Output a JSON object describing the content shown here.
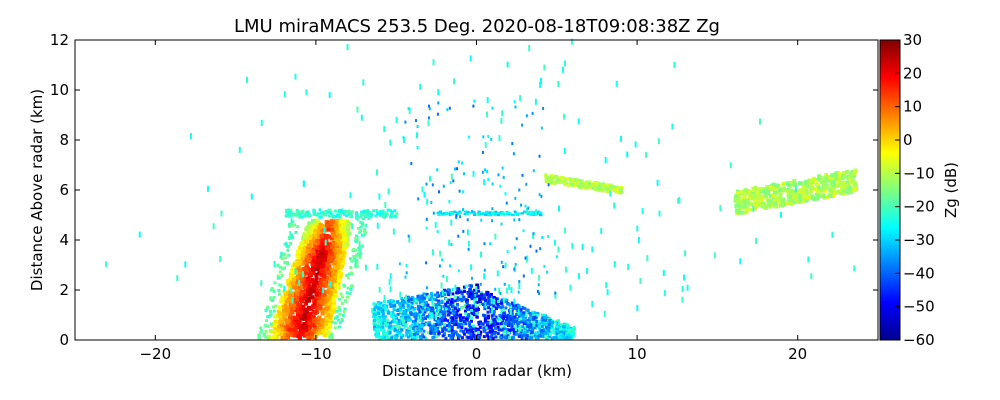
{
  "chart_data": {
    "type": "heatmap",
    "title": "LMU miraMACS 253.5 Deg. 2020-08-18T09:08:38Z  Zg",
    "xlabel": "Distance from radar (km)",
    "ylabel": "Distance Above radar  (km)",
    "xlim": [
      -25,
      25
    ],
    "ylim": [
      0,
      12
    ],
    "x_ticks": [
      -20,
      -10,
      0,
      10,
      20
    ],
    "x_tick_labels": [
      "−20",
      "−10",
      "0",
      "10",
      "20"
    ],
    "y_ticks": [
      0,
      2,
      4,
      6,
      8,
      10,
      12
    ],
    "y_tick_labels": [
      "0",
      "2",
      "4",
      "6",
      "8",
      "10",
      "12"
    ],
    "colorbar": {
      "label": "Zg (dB)",
      "range": [
        -60,
        30
      ],
      "ticks": [
        30,
        20,
        10,
        0,
        -10,
        -20,
        -30,
        -40,
        -50,
        -60
      ],
      "tick_labels": [
        "30",
        "20",
        "10",
        "0",
        "−10",
        "−20",
        "−30",
        "−40",
        "−50",
        "−60"
      ],
      "colormap": "jet"
    },
    "features": [
      {
        "name": "convective-core",
        "x_range": [
          -13,
          -7.5
        ],
        "y_range": [
          0,
          4.8
        ],
        "zg_range": [
          -25,
          25
        ]
      },
      {
        "name": "near-radar-clutter",
        "x_range": [
          -6.5,
          6
        ],
        "y_range": [
          0,
          2.2
        ],
        "zg_range": [
          -60,
          -20
        ]
      },
      {
        "name": "mid-layer-cloud-left",
        "x_range": [
          -12,
          -5
        ],
        "y_range": [
          4.8,
          5.2
        ],
        "zg_range": [
          -30,
          -20
        ]
      },
      {
        "name": "mid-layer-cloud-center",
        "x_range": [
          -2.5,
          4
        ],
        "y_range": [
          4.9,
          5.1
        ],
        "zg_range": [
          -35,
          -25
        ]
      },
      {
        "name": "cloud-band-right",
        "x_range": [
          4,
          9
        ],
        "y_range": [
          5.8,
          6.4
        ],
        "zg_range": [
          -20,
          -10
        ]
      },
      {
        "name": "cloud-band-far-right",
        "x_range": [
          16,
          23.5
        ],
        "y_range": [
          5.2,
          6.8
        ],
        "zg_range": [
          -20,
          -10
        ]
      },
      {
        "name": "noise-arcs",
        "x_range": [
          -23,
          22
        ],
        "y_range": [
          0.5,
          12
        ],
        "zg_range": [
          -35,
          -20
        ]
      }
    ]
  }
}
